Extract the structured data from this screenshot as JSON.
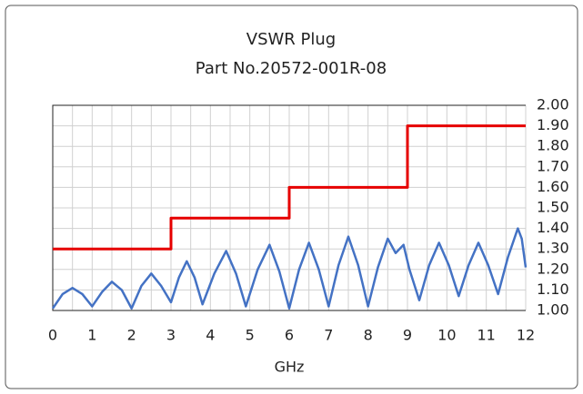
{
  "chart_data": {
    "type": "line",
    "title": "VSWR Plug",
    "subtitle": "Part No.20572-001R-08",
    "x_label": "GHz",
    "xlim": [
      0,
      12
    ],
    "xticks": [
      0,
      1,
      2,
      3,
      4,
      5,
      6,
      7,
      8,
      9,
      10,
      11,
      12
    ],
    "xminorticks": [
      0.5,
      1.5,
      2.5,
      3.5,
      4.5,
      5.5,
      6.5,
      7.5,
      8.5,
      9.5,
      10.5,
      11.5
    ],
    "ylim": [
      1,
      2
    ],
    "yticks": [
      {
        "value": 1,
        "label": "1.00"
      },
      {
        "value": 1.1,
        "label": "1.10"
      },
      {
        "value": 1.2,
        "label": "1.20"
      },
      {
        "value": 1.3,
        "label": "1.30"
      },
      {
        "value": 1.4,
        "label": "1.40"
      },
      {
        "value": 1.5,
        "label": "1.50"
      },
      {
        "value": 1.6,
        "label": "1.60"
      },
      {
        "value": 1.7,
        "label": "1.70"
      },
      {
        "value": 1.8,
        "label": "1.80"
      },
      {
        "value": 1.9,
        "label": "1.90"
      },
      {
        "value": 2,
        "label": "2.00"
      }
    ],
    "y_axis_side": "right",
    "grid": true,
    "series": [
      {
        "color": "#e60000",
        "x": [
          0,
          3,
          3,
          6,
          6,
          9,
          9,
          12
        ],
        "values": [
          1.3,
          1.3,
          1.45,
          1.45,
          1.6,
          1.6,
          1.9,
          1.9
        ]
      },
      {
        "color": "#4472c4",
        "x": [
          0,
          0.25,
          0.5,
          0.75,
          1,
          1.25,
          1.5,
          1.75,
          2,
          2.25,
          2.5,
          2.75,
          3,
          3.2,
          3.4,
          3.6,
          3.8,
          4.1,
          4.4,
          4.65,
          4.9,
          5.2,
          5.5,
          5.75,
          6,
          6.25,
          6.5,
          6.75,
          7,
          7.25,
          7.5,
          7.75,
          8,
          8.25,
          8.5,
          8.7,
          8.9,
          9.05,
          9.3,
          9.55,
          9.8,
          10.05,
          10.3,
          10.55,
          10.8,
          11.05,
          11.3,
          11.55,
          11.8,
          11.9,
          12
        ],
        "values": [
          1.01,
          1.08,
          1.11,
          1.08,
          1.02,
          1.09,
          1.14,
          1.1,
          1.01,
          1.12,
          1.18,
          1.12,
          1.04,
          1.16,
          1.24,
          1.16,
          1.03,
          1.18,
          1.29,
          1.18,
          1.02,
          1.2,
          1.32,
          1.19,
          1.01,
          1.2,
          1.33,
          1.2,
          1.02,
          1.22,
          1.36,
          1.22,
          1.02,
          1.21,
          1.35,
          1.28,
          1.32,
          1.2,
          1.05,
          1.22,
          1.33,
          1.22,
          1.07,
          1.22,
          1.33,
          1.22,
          1.08,
          1.26,
          1.4,
          1.35,
          1.21
        ]
      }
    ]
  }
}
